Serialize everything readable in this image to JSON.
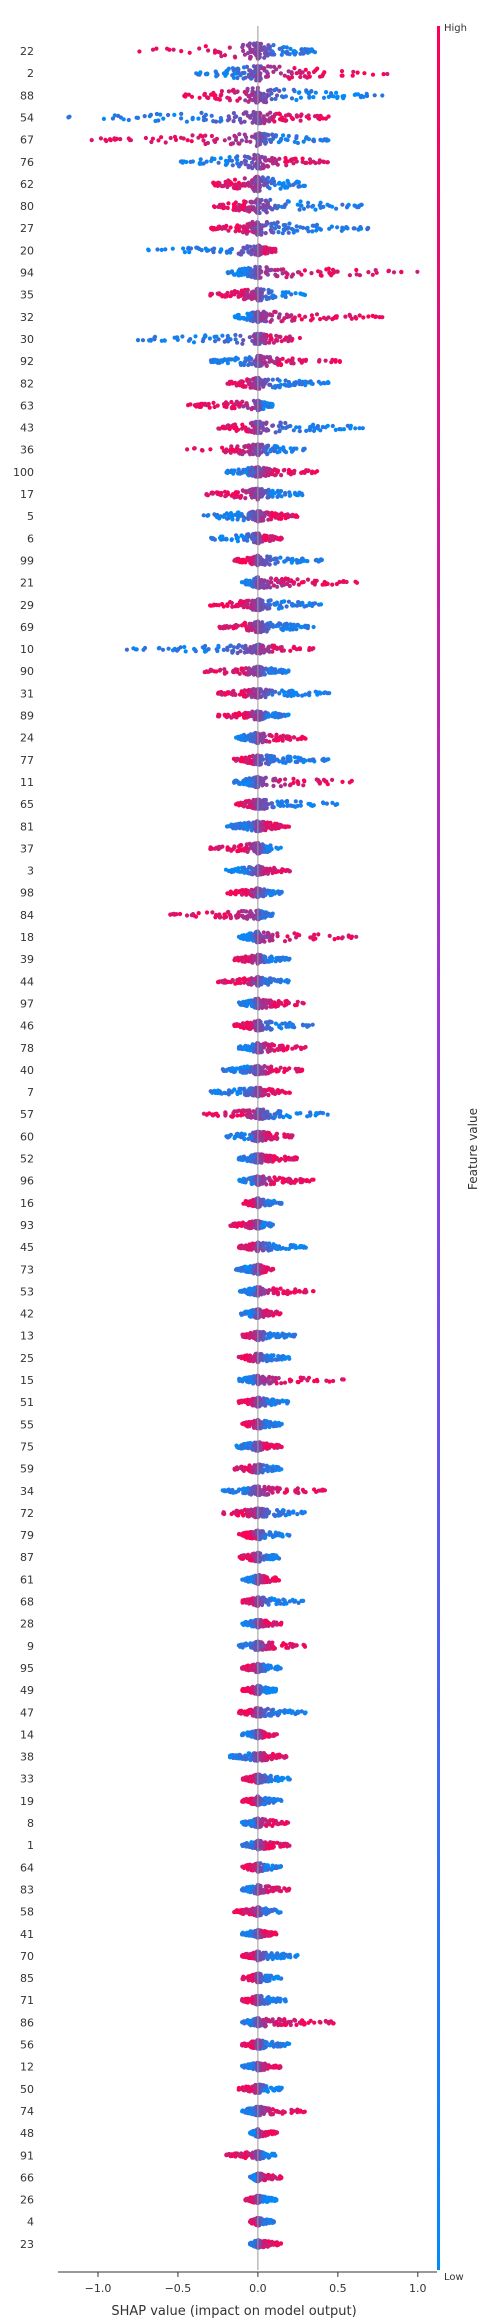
{
  "chart_data": {
    "type": "scatter",
    "subtype": "shap-beeswarm",
    "title": "",
    "xlabel": "SHAP value (impact on model output)",
    "ylabel": "",
    "xlim": [
      -1.25,
      1.12
    ],
    "xticks": [
      -1.0,
      -0.5,
      0.0,
      0.5,
      1.0
    ],
    "xtick_labels": [
      "−1.0",
      "−0.5",
      "0.0",
      "0.5",
      "1.0"
    ],
    "colorbar": {
      "label": "Feature value",
      "high": "High",
      "low": "Low",
      "color_high": "#ff0052",
      "color_low": "#008bfb"
    },
    "grid": false,
    "features": [
      {
        "name": "22",
        "min": -0.8,
        "max": 0.38,
        "high_side": "left",
        "thick": 0.7
      },
      {
        "name": "2",
        "min": -0.4,
        "max": 0.85,
        "high_side": "right",
        "thick": 0.65
      },
      {
        "name": "88",
        "min": -0.5,
        "max": 0.8,
        "high_side": "left",
        "thick": 0.65
      },
      {
        "name": "54",
        "min": -1.2,
        "max": 0.45,
        "high_side": "right",
        "thick": 0.55
      },
      {
        "name": "67",
        "min": -1.05,
        "max": 0.45,
        "high_side": "left",
        "thick": 0.55
      },
      {
        "name": "76",
        "min": -0.5,
        "max": 0.45,
        "high_side": "right",
        "thick": 0.6
      },
      {
        "name": "62",
        "min": -0.3,
        "max": 0.35,
        "high_side": "left",
        "thick": 0.65
      },
      {
        "name": "80",
        "min": -0.28,
        "max": 0.68,
        "high_side": "left",
        "thick": 0.6
      },
      {
        "name": "27",
        "min": -0.3,
        "max": 0.72,
        "high_side": "left",
        "thick": 0.6
      },
      {
        "name": "20",
        "min": -0.7,
        "max": 0.12,
        "high_side": "right",
        "thick": 0.4
      },
      {
        "name": "94",
        "min": -0.2,
        "max": 1.03,
        "high_side": "right",
        "thick": 0.5
      },
      {
        "name": "35",
        "min": -0.3,
        "max": 0.3,
        "high_side": "left",
        "thick": 0.5
      },
      {
        "name": "32",
        "min": -0.15,
        "max": 0.78,
        "high_side": "right",
        "thick": 0.45
      },
      {
        "name": "30",
        "min": -0.85,
        "max": 0.3,
        "high_side": "right",
        "thick": 0.45
      },
      {
        "name": "92",
        "min": -0.3,
        "max": 0.52,
        "high_side": "right",
        "thick": 0.45
      },
      {
        "name": "82",
        "min": -0.2,
        "max": 0.45,
        "high_side": "left",
        "thick": 0.45
      },
      {
        "name": "63",
        "min": -0.45,
        "max": 0.1,
        "high_side": "left",
        "thick": 0.4
      },
      {
        "name": "43",
        "min": -0.25,
        "max": 0.68,
        "high_side": "left",
        "thick": 0.5
      },
      {
        "name": "36",
        "min": -0.45,
        "max": 0.3,
        "high_side": "left",
        "thick": 0.45
      },
      {
        "name": "100",
        "min": -0.2,
        "max": 0.38,
        "high_side": "right",
        "thick": 0.4
      },
      {
        "name": "17",
        "min": -0.35,
        "max": 0.3,
        "high_side": "left",
        "thick": 0.45
      },
      {
        "name": "5",
        "min": -0.35,
        "max": 0.25,
        "high_side": "right",
        "thick": 0.45
      },
      {
        "name": "6",
        "min": -0.3,
        "max": 0.15,
        "high_side": "right",
        "thick": 0.4
      },
      {
        "name": "99",
        "min": -0.15,
        "max": 0.4,
        "high_side": "left",
        "thick": 0.4
      },
      {
        "name": "21",
        "min": -0.1,
        "max": 0.62,
        "high_side": "right",
        "thick": 0.45
      },
      {
        "name": "29",
        "min": -0.3,
        "max": 0.4,
        "high_side": "left",
        "thick": 0.45
      },
      {
        "name": "69",
        "min": -0.25,
        "max": 0.35,
        "high_side": "left",
        "thick": 0.45
      },
      {
        "name": "10",
        "min": -0.82,
        "max": 0.35,
        "high_side": "right",
        "thick": 0.35
      },
      {
        "name": "90",
        "min": -0.35,
        "max": 0.2,
        "high_side": "left",
        "thick": 0.35
      },
      {
        "name": "31",
        "min": -0.25,
        "max": 0.45,
        "high_side": "left",
        "thick": 0.35
      },
      {
        "name": "89",
        "min": -0.25,
        "max": 0.2,
        "high_side": "left",
        "thick": 0.35
      },
      {
        "name": "24",
        "min": -0.15,
        "max": 0.3,
        "high_side": "right",
        "thick": 0.45
      },
      {
        "name": "77",
        "min": -0.15,
        "max": 0.45,
        "high_side": "left",
        "thick": 0.4
      },
      {
        "name": "11",
        "min": -0.15,
        "max": 0.62,
        "high_side": "right",
        "thick": 0.45
      },
      {
        "name": "65",
        "min": -0.15,
        "max": 0.5,
        "high_side": "left",
        "thick": 0.4
      },
      {
        "name": "81",
        "min": -0.2,
        "max": 0.2,
        "high_side": "right",
        "thick": 0.4
      },
      {
        "name": "37",
        "min": -0.3,
        "max": 0.15,
        "high_side": "left",
        "thick": 0.45
      },
      {
        "name": "3",
        "min": -0.2,
        "max": 0.2,
        "high_side": "right",
        "thick": 0.35
      },
      {
        "name": "98",
        "min": -0.2,
        "max": 0.15,
        "high_side": "left",
        "thick": 0.35
      },
      {
        "name": "84",
        "min": -0.55,
        "max": 0.1,
        "high_side": "left",
        "thick": 0.35
      },
      {
        "name": "18",
        "min": -0.12,
        "max": 0.65,
        "high_side": "right",
        "thick": 0.45
      },
      {
        "name": "39",
        "min": -0.15,
        "max": 0.2,
        "high_side": "left",
        "thick": 0.35
      },
      {
        "name": "44",
        "min": -0.25,
        "max": 0.2,
        "high_side": "left",
        "thick": 0.35
      },
      {
        "name": "97",
        "min": -0.12,
        "max": 0.3,
        "high_side": "right",
        "thick": 0.4
      },
      {
        "name": "46",
        "min": -0.15,
        "max": 0.35,
        "high_side": "left",
        "thick": 0.4
      },
      {
        "name": "78",
        "min": -0.12,
        "max": 0.3,
        "high_side": "right",
        "thick": 0.4
      },
      {
        "name": "40",
        "min": -0.22,
        "max": 0.3,
        "high_side": "right",
        "thick": 0.35
      },
      {
        "name": "7",
        "min": -0.3,
        "max": 0.2,
        "high_side": "right",
        "thick": 0.35
      },
      {
        "name": "57",
        "min": -0.35,
        "max": 0.45,
        "high_side": "left",
        "thick": 0.4
      },
      {
        "name": "60",
        "min": -0.2,
        "max": 0.22,
        "high_side": "right",
        "thick": 0.4
      },
      {
        "name": "52",
        "min": -0.12,
        "max": 0.25,
        "high_side": "right",
        "thick": 0.35
      },
      {
        "name": "96",
        "min": -0.12,
        "max": 0.35,
        "high_side": "right",
        "thick": 0.35
      },
      {
        "name": "16",
        "min": -0.1,
        "max": 0.15,
        "high_side": "left",
        "thick": 0.35
      },
      {
        "name": "93",
        "min": -0.18,
        "max": 0.1,
        "high_side": "left",
        "thick": 0.3
      },
      {
        "name": "45",
        "min": -0.12,
        "max": 0.3,
        "high_side": "left",
        "thick": 0.35
      },
      {
        "name": "73",
        "min": -0.15,
        "max": 0.1,
        "high_side": "right",
        "thick": 0.4
      },
      {
        "name": "53",
        "min": -0.12,
        "max": 0.35,
        "high_side": "right",
        "thick": 0.35
      },
      {
        "name": "42",
        "min": -0.12,
        "max": 0.15,
        "high_side": "right",
        "thick": 0.35
      },
      {
        "name": "13",
        "min": -0.1,
        "max": 0.25,
        "high_side": "left",
        "thick": 0.35
      },
      {
        "name": "25",
        "min": -0.12,
        "max": 0.2,
        "high_side": "left",
        "thick": 0.35
      },
      {
        "name": "15",
        "min": -0.12,
        "max": 0.55,
        "high_side": "right",
        "thick": 0.35
      },
      {
        "name": "51",
        "min": -0.12,
        "max": 0.2,
        "high_side": "left",
        "thick": 0.35
      },
      {
        "name": "55",
        "min": -0.1,
        "max": 0.15,
        "high_side": "left",
        "thick": 0.35
      },
      {
        "name": "75",
        "min": -0.15,
        "max": 0.15,
        "high_side": "right",
        "thick": 0.35
      },
      {
        "name": "59",
        "min": -0.15,
        "max": 0.15,
        "high_side": "left",
        "thick": 0.35
      },
      {
        "name": "34",
        "min": -0.22,
        "max": 0.42,
        "high_side": "right",
        "thick": 0.35
      },
      {
        "name": "72",
        "min": -0.22,
        "max": 0.3,
        "high_side": "left",
        "thick": 0.35
      },
      {
        "name": "79",
        "min": -0.12,
        "max": 0.2,
        "high_side": "left",
        "thick": 0.35
      },
      {
        "name": "87",
        "min": -0.12,
        "max": 0.15,
        "high_side": "left",
        "thick": 0.35
      },
      {
        "name": "61",
        "min": -0.1,
        "max": 0.15,
        "high_side": "right",
        "thick": 0.35
      },
      {
        "name": "68",
        "min": -0.1,
        "max": 0.3,
        "high_side": "left",
        "thick": 0.35
      },
      {
        "name": "28",
        "min": -0.1,
        "max": 0.15,
        "high_side": "right",
        "thick": 0.3
      },
      {
        "name": "9",
        "min": -0.12,
        "max": 0.3,
        "high_side": "right",
        "thick": 0.35
      },
      {
        "name": "95",
        "min": -0.1,
        "max": 0.15,
        "high_side": "left",
        "thick": 0.35
      },
      {
        "name": "49",
        "min": -0.1,
        "max": 0.12,
        "high_side": "left",
        "thick": 0.35
      },
      {
        "name": "47",
        "min": -0.12,
        "max": 0.3,
        "high_side": "left",
        "thick": 0.35
      },
      {
        "name": "14",
        "min": -0.1,
        "max": 0.12,
        "high_side": "right",
        "thick": 0.3
      },
      {
        "name": "38",
        "min": -0.18,
        "max": 0.18,
        "high_side": "right",
        "thick": 0.35
      },
      {
        "name": "33",
        "min": -0.1,
        "max": 0.2,
        "high_side": "left",
        "thick": 0.35
      },
      {
        "name": "19",
        "min": -0.1,
        "max": 0.15,
        "high_side": "left",
        "thick": 0.35
      },
      {
        "name": "8",
        "min": -0.1,
        "max": 0.2,
        "high_side": "right",
        "thick": 0.35
      },
      {
        "name": "1",
        "min": -0.1,
        "max": 0.2,
        "high_side": "right",
        "thick": 0.35
      },
      {
        "name": "64",
        "min": -0.1,
        "max": 0.15,
        "high_side": "left",
        "thick": 0.35
      },
      {
        "name": "83",
        "min": -0.1,
        "max": 0.2,
        "high_side": "right",
        "thick": 0.35
      },
      {
        "name": "58",
        "min": -0.15,
        "max": 0.15,
        "high_side": "left",
        "thick": 0.35
      },
      {
        "name": "41",
        "min": -0.1,
        "max": 0.12,
        "high_side": "right",
        "thick": 0.3
      },
      {
        "name": "70",
        "min": -0.1,
        "max": 0.25,
        "high_side": "left",
        "thick": 0.35
      },
      {
        "name": "85",
        "min": -0.1,
        "max": 0.15,
        "high_side": "left",
        "thick": 0.35
      },
      {
        "name": "71",
        "min": -0.1,
        "max": 0.2,
        "high_side": "left",
        "thick": 0.35
      },
      {
        "name": "86",
        "min": -0.1,
        "max": 0.48,
        "high_side": "right",
        "thick": 0.35
      },
      {
        "name": "56",
        "min": -0.1,
        "max": 0.2,
        "high_side": "left",
        "thick": 0.35
      },
      {
        "name": "12",
        "min": -0.1,
        "max": 0.15,
        "high_side": "right",
        "thick": 0.3
      },
      {
        "name": "50",
        "min": -0.12,
        "max": 0.15,
        "high_side": "left",
        "thick": 0.35
      },
      {
        "name": "74",
        "min": -0.1,
        "max": 0.3,
        "high_side": "right",
        "thick": 0.35
      },
      {
        "name": "48",
        "min": -0.05,
        "max": 0.12,
        "high_side": "right",
        "thick": 0.3
      },
      {
        "name": "91",
        "min": -0.2,
        "max": 0.12,
        "high_side": "left",
        "thick": 0.3
      },
      {
        "name": "66",
        "min": -0.05,
        "max": 0.15,
        "high_side": "right",
        "thick": 0.3
      },
      {
        "name": "26",
        "min": -0.08,
        "max": 0.12,
        "high_side": "left",
        "thick": 0.3
      },
      {
        "name": "4",
        "min": -0.05,
        "max": 0.1,
        "high_side": "left",
        "thick": 0.3
      },
      {
        "name": "23",
        "min": -0.05,
        "max": 0.15,
        "high_side": "right",
        "thick": 0.3
      }
    ]
  }
}
